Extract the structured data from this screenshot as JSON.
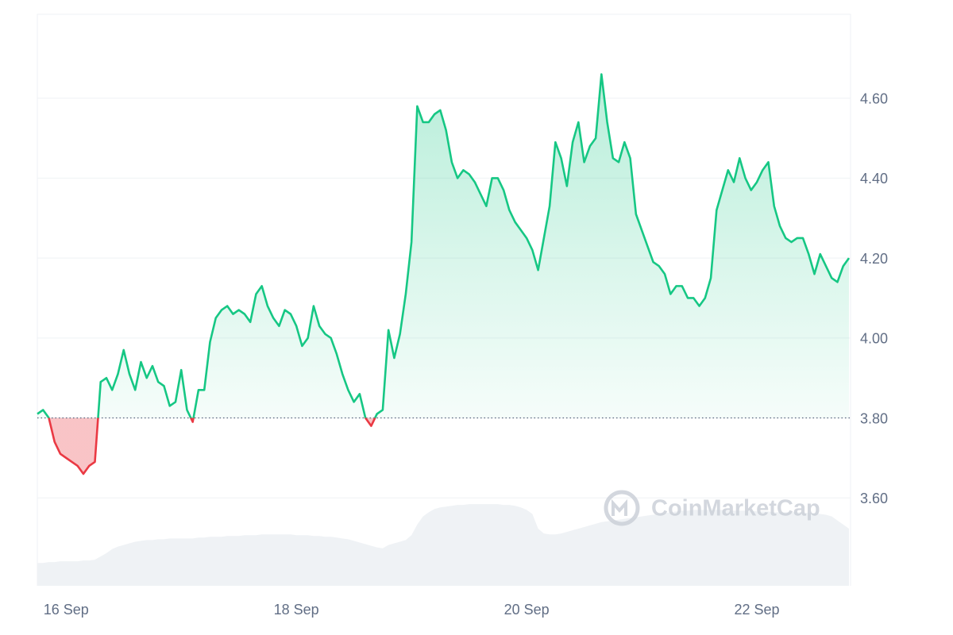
{
  "chart_data": {
    "type": "line",
    "watermark": "CoinMarketCap",
    "baseline": 3.8,
    "up_color": "#16c784",
    "down_color": "#ea3943",
    "volume_color": "#eff2f5",
    "grid": true,
    "ylim": [
      3.38,
      4.81
    ],
    "yticks": [
      {
        "value": 3.6,
        "label": "3.60"
      },
      {
        "value": 3.8,
        "label": "3.80"
      },
      {
        "value": 4.0,
        "label": "4.00"
      },
      {
        "value": 4.2,
        "label": "4.20"
      },
      {
        "value": 4.4,
        "label": "4.40"
      },
      {
        "value": 4.6,
        "label": "4.60"
      }
    ],
    "y2lim": [
      0,
      700
    ],
    "categories": [
      null,
      null,
      null,
      null,
      null,
      "16 Sep",
      null,
      null,
      null,
      null,
      null,
      null,
      null,
      null,
      null,
      null,
      null,
      null,
      null,
      null,
      null,
      null,
      null,
      null,
      null,
      null,
      null,
      null,
      null,
      null,
      null,
      null,
      null,
      null,
      null,
      null,
      null,
      null,
      null,
      null,
      null,
      null,
      null,
      null,
      null,
      "18 Sep",
      null,
      null,
      null,
      null,
      null,
      null,
      null,
      null,
      null,
      null,
      null,
      null,
      null,
      null,
      null,
      null,
      null,
      null,
      null,
      null,
      null,
      null,
      null,
      null,
      null,
      null,
      null,
      null,
      null,
      null,
      null,
      null,
      null,
      null,
      null,
      null,
      null,
      null,
      null,
      "20 Sep",
      null,
      null,
      null,
      null,
      null,
      null,
      null,
      null,
      null,
      null,
      null,
      null,
      null,
      null,
      null,
      null,
      null,
      null,
      null,
      null,
      null,
      null,
      null,
      null,
      null,
      null,
      null,
      null,
      null,
      null,
      null,
      null,
      null,
      null,
      null,
      null,
      null,
      null,
      null,
      "22 Sep",
      null,
      null,
      null,
      null,
      null,
      null,
      null,
      null,
      null,
      null,
      null,
      null,
      null,
      null,
      null,
      null
    ],
    "series": [
      {
        "values": [
          3.81,
          3.82,
          3.8,
          3.74,
          3.71,
          3.7,
          3.69,
          3.68,
          3.66,
          3.68,
          3.69,
          3.89,
          3.9,
          3.87,
          3.91,
          3.97,
          3.91,
          3.87,
          3.94,
          3.9,
          3.93,
          3.89,
          3.88,
          3.83,
          3.84,
          3.92,
          3.82,
          3.79,
          3.87,
          3.87,
          3.99,
          4.05,
          4.07,
          4.08,
          4.06,
          4.07,
          4.06,
          4.04,
          4.11,
          4.13,
          4.08,
          4.05,
          4.03,
          4.07,
          4.06,
          4.03,
          3.98,
          4.0,
          4.08,
          4.03,
          4.01,
          4.0,
          3.96,
          3.91,
          3.87,
          3.84,
          3.86,
          3.8,
          3.78,
          3.81,
          3.82,
          4.02,
          3.95,
          4.01,
          4.11,
          4.24,
          4.58,
          4.54,
          4.54,
          4.56,
          4.57,
          4.52,
          4.44,
          4.4,
          4.42,
          4.41,
          4.39,
          4.36,
          4.33,
          4.4,
          4.4,
          4.37,
          4.32,
          4.29,
          4.27,
          4.25,
          4.22,
          4.17,
          4.25,
          4.33,
          4.49,
          4.45,
          4.38,
          4.49,
          4.54,
          4.44,
          4.48,
          4.5,
          4.66,
          4.54,
          4.45,
          4.44,
          4.49,
          4.45,
          4.31,
          4.27,
          4.23,
          4.19,
          4.18,
          4.16,
          4.11,
          4.13,
          4.13,
          4.1,
          4.1,
          4.08,
          4.1,
          4.15,
          4.32,
          4.37,
          4.42,
          4.39,
          4.45,
          4.4,
          4.37,
          4.39,
          4.42,
          4.44,
          4.33,
          4.28,
          4.25,
          4.24,
          4.25,
          4.25,
          4.21,
          4.16,
          4.21,
          4.18,
          4.15,
          4.14,
          4.18,
          4.2
        ]
      },
      {
        "axis": "y2",
        "values": [
          28,
          28,
          29,
          29,
          30,
          30,
          30,
          30,
          31,
          31,
          32,
          36,
          40,
          45,
          48,
          50,
          52,
          54,
          55,
          56,
          56,
          57,
          57,
          58,
          58,
          58,
          58,
          58,
          59,
          59,
          60,
          60,
          60,
          61,
          61,
          61,
          62,
          62,
          62,
          63,
          63,
          63,
          63,
          63,
          63,
          62,
          62,
          62,
          61,
          61,
          60,
          60,
          59,
          58,
          57,
          55,
          53,
          51,
          49,
          47,
          46,
          50,
          52,
          54,
          56,
          62,
          75,
          85,
          90,
          94,
          96,
          97,
          98,
          99,
          99,
          100,
          100,
          100,
          100,
          100,
          100,
          99,
          99,
          98,
          96,
          93,
          88,
          70,
          64,
          63,
          63,
          64,
          66,
          68,
          70,
          72,
          74,
          76,
          78,
          79,
          80,
          81,
          82,
          83,
          84,
          85,
          86,
          87,
          88,
          89,
          90,
          91,
          92,
          92,
          93,
          93,
          93,
          93,
          93,
          93,
          92,
          92,
          92,
          92,
          92,
          91,
          91,
          91,
          90,
          90,
          90,
          90,
          90,
          90,
          89,
          89,
          88,
          87,
          85,
          80,
          75,
          70
        ]
      }
    ]
  }
}
